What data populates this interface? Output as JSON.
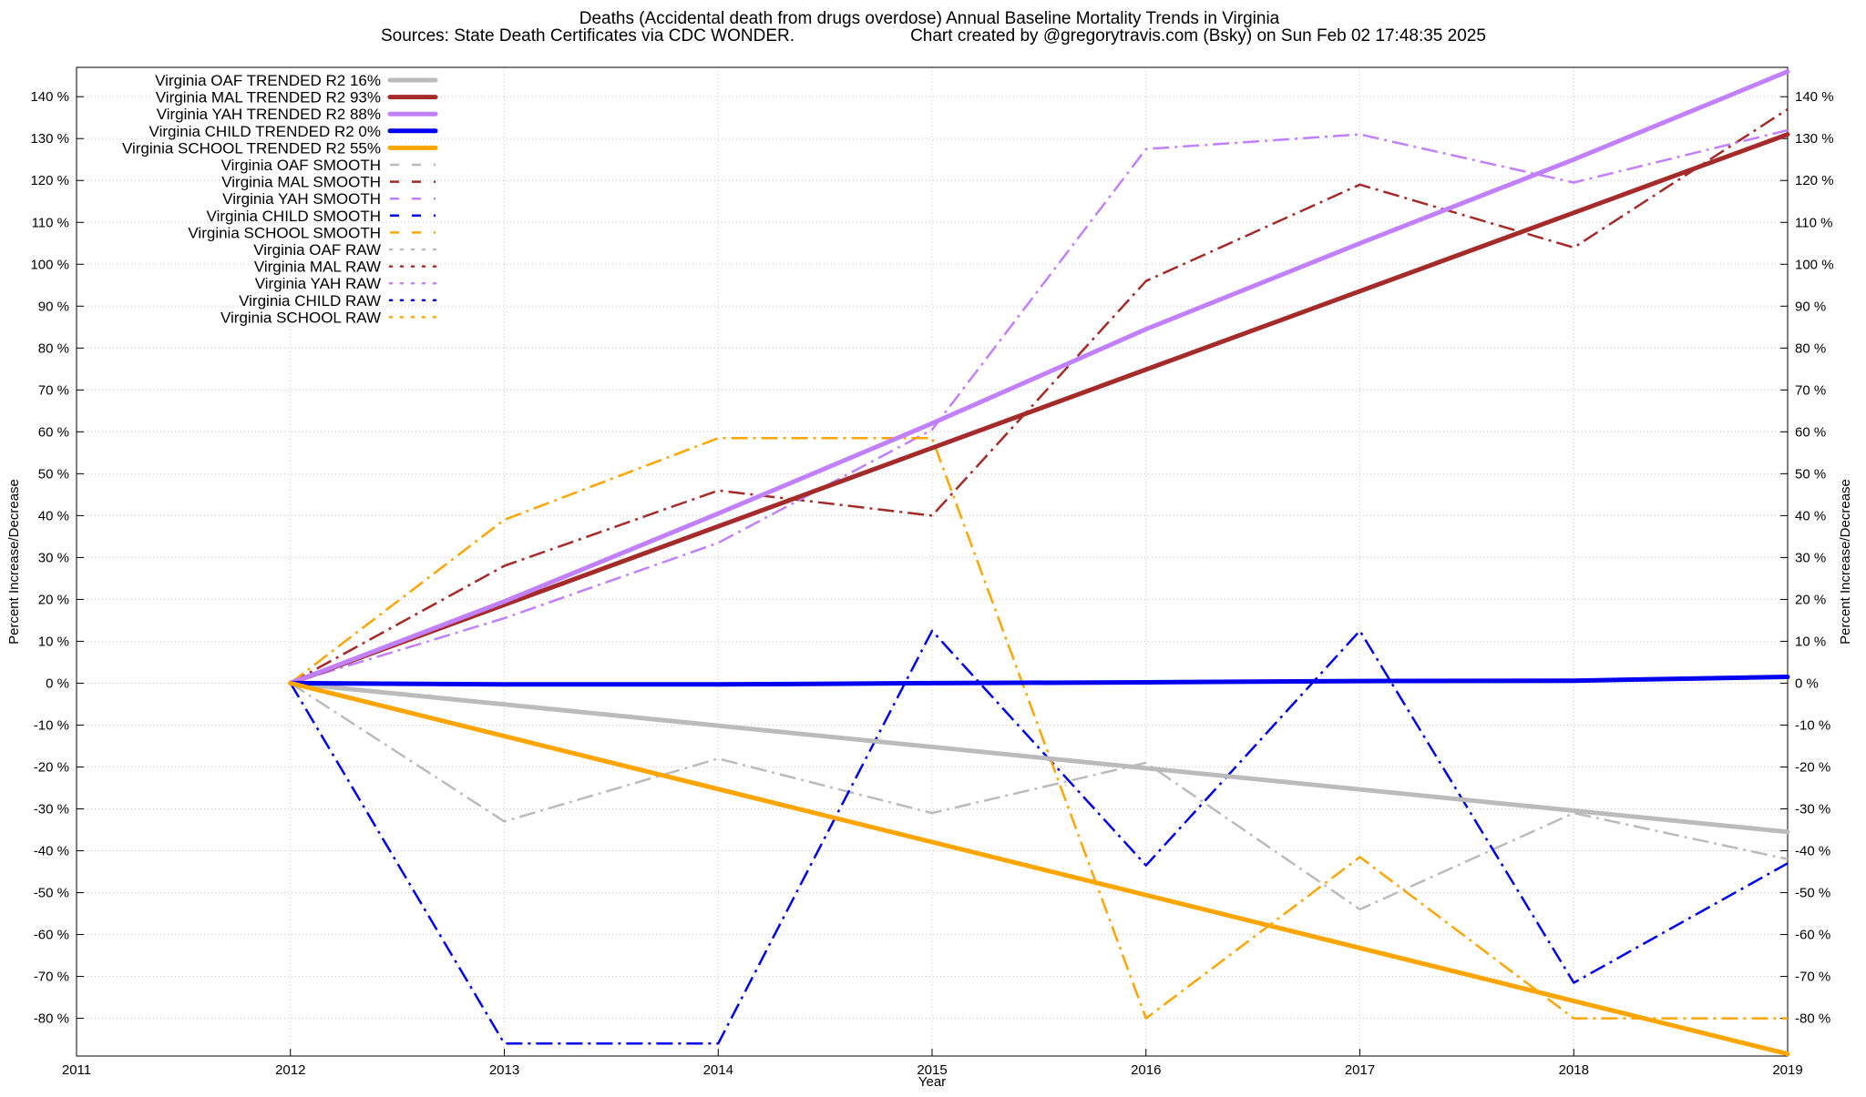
{
  "title": "Deaths (Accidental death from drugs overdose)  Annual Baseline Mortality Trends in Virginia",
  "subtitle_sources": "Sources: State Death Certificates via CDC WONDER.",
  "subtitle_credit": "Chart created by @gregorytravis.com (Bsky) on Sun Feb 02 17:48:35 2025",
  "chart_data": {
    "type": "line",
    "xlabel": "Year",
    "ylabel_left": "Percent Increase/Decrease",
    "ylabel_right": "Percent Increase/Decrease",
    "xlim": [
      2011,
      2019
    ],
    "ylim": [
      -89,
      147
    ],
    "grid": true,
    "legend_placement": "top-left",
    "x_ticks": [
      "2011",
      "2012",
      "2013",
      "2014",
      "2015",
      "2016",
      "2017",
      "2018",
      "2019"
    ],
    "y_ticks": [
      {
        "value": 140,
        "label": "140 %"
      },
      {
        "value": 130,
        "label": "130 %"
      },
      {
        "value": 120,
        "label": "120 %"
      },
      {
        "value": 110,
        "label": "110 %"
      },
      {
        "value": 100,
        "label": "100 %"
      },
      {
        "value": 90,
        "label": "90 %"
      },
      {
        "value": 80,
        "label": "80 %"
      },
      {
        "value": 70,
        "label": "70 %"
      },
      {
        "value": 60,
        "label": "60 %"
      },
      {
        "value": 50,
        "label": "50 %"
      },
      {
        "value": 40,
        "label": "40 %"
      },
      {
        "value": 30,
        "label": "30 %"
      },
      {
        "value": 20,
        "label": "20 %"
      },
      {
        "value": 10,
        "label": "10 %"
      },
      {
        "value": 0,
        "label": "0 %"
      },
      {
        "value": -10,
        "label": "-10 %"
      },
      {
        "value": -20,
        "label": "-20 %"
      },
      {
        "value": -30,
        "label": "-30 %"
      },
      {
        "value": -40,
        "label": "-40 %"
      },
      {
        "value": -50,
        "label": "-50 %"
      },
      {
        "value": -60,
        "label": "-60 %"
      },
      {
        "value": -70,
        "label": "-70 %"
      },
      {
        "value": -80,
        "label": "-80 %"
      }
    ],
    "series": [
      {
        "name": "Virginia OAF TRENDED R2  16%",
        "style": "trend",
        "color": "#bbbbbb",
        "x": [
          2012,
          2019
        ],
        "y": [
          0,
          -35.5
        ]
      },
      {
        "name": "Virginia MAL TRENDED R2  93%",
        "style": "trend",
        "color": "#a52a2a",
        "x": [
          2012,
          2019
        ],
        "y": [
          0,
          131
        ]
      },
      {
        "name": "Virginia YAH TRENDED R2  88%",
        "style": "trend",
        "color": "#c080ff",
        "x": [
          2012,
          2013,
          2014,
          2015,
          2016,
          2017,
          2018,
          2019
        ],
        "y": [
          0,
          19.5,
          40.5,
          62,
          84.5,
          105,
          125,
          146
        ]
      },
      {
        "name": "Virginia CHILD TRENDED R2  0%",
        "style": "trend",
        "color": "#0000ee",
        "x": [
          2012,
          2013,
          2014,
          2015,
          2016,
          2017,
          2018,
          2019
        ],
        "y": [
          0,
          -0.3,
          -0.3,
          0,
          0.2,
          0.5,
          0.6,
          1.5
        ]
      },
      {
        "name": "Virginia SCHOOL TRENDED R2  55%",
        "style": "trend",
        "color": "#ffa500",
        "x": [
          2012,
          2019
        ],
        "y": [
          0,
          -88.5
        ]
      },
      {
        "name": "Virginia OAF SMOOTH",
        "style": "smooth",
        "color": "#bbbbbb",
        "x": [
          2012,
          2013,
          2014,
          2015,
          2016,
          2017,
          2018,
          2019
        ],
        "y": [
          0,
          -33,
          -18,
          -31,
          -19,
          -54,
          -31,
          -42
        ]
      },
      {
        "name": "Virginia MAL SMOOTH",
        "style": "smooth",
        "color": "#a52a2a",
        "x": [
          2012,
          2013,
          2014,
          2015,
          2016,
          2017,
          2018,
          2019
        ],
        "y": [
          0,
          28,
          46,
          40,
          96,
          119,
          104,
          137
        ]
      },
      {
        "name": "Virginia YAH SMOOTH",
        "style": "smooth",
        "color": "#c080ff",
        "x": [
          2012,
          2013,
          2014,
          2015,
          2016,
          2017,
          2018,
          2019
        ],
        "y": [
          0,
          15.5,
          33.5,
          60.5,
          127.5,
          131,
          119.5,
          132
        ]
      },
      {
        "name": "Virginia CHILD SMOOTH",
        "style": "smooth",
        "color": "#0000ee",
        "x": [
          2012,
          2013,
          2014,
          2015,
          2016,
          2017,
          2018,
          2019
        ],
        "y": [
          0,
          -86,
          -86,
          12.5,
          -43.5,
          12.5,
          -71.5,
          -43
        ]
      },
      {
        "name": "Virginia SCHOOL SMOOTH",
        "style": "smooth",
        "color": "#ffa500",
        "x": [
          2012,
          2013,
          2014,
          2015,
          2016,
          2017,
          2018,
          2019
        ],
        "y": [
          0,
          39,
          58.5,
          58.5,
          -80,
          -41.5,
          -80,
          -80
        ]
      },
      {
        "name": "Virginia OAF RAW",
        "style": "raw",
        "color": "#bbbbbb",
        "x": [],
        "y": []
      },
      {
        "name": "Virginia MAL RAW",
        "style": "raw",
        "color": "#a52a2a",
        "x": [],
        "y": []
      },
      {
        "name": "Virginia YAH RAW",
        "style": "raw",
        "color": "#c080ff",
        "x": [],
        "y": []
      },
      {
        "name": "Virginia CHILD RAW",
        "style": "raw",
        "color": "#0000ee",
        "x": [],
        "y": []
      },
      {
        "name": "Virginia SCHOOL RAW",
        "style": "raw",
        "color": "#ffa500",
        "x": [],
        "y": []
      }
    ]
  }
}
